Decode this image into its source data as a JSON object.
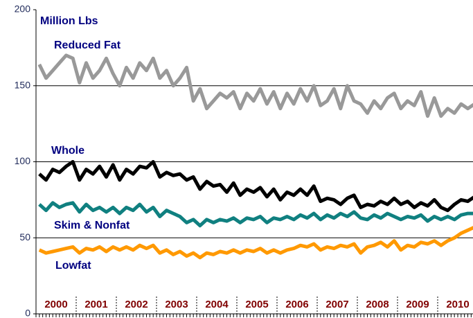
{
  "chart_data": {
    "type": "line",
    "ylabel": "Million Lbs",
    "categories": [
      null,
      null,
      null,
      "2000",
      null,
      null,
      null,
      null,
      null,
      "2001",
      null,
      null,
      null,
      null,
      null,
      "2002",
      null,
      null,
      null,
      null,
      null,
      "2003",
      null,
      null,
      null,
      null,
      null,
      "2004",
      null,
      null,
      null,
      null,
      null,
      "2005",
      null,
      null,
      null,
      null,
      null,
      "2006",
      null,
      null,
      null,
      null,
      null,
      "2007",
      null,
      null,
      null,
      null,
      null,
      "2008",
      null,
      null,
      null,
      null,
      null,
      "2009",
      null,
      null,
      null,
      null,
      null,
      "2010",
      null,
      null
    ],
    "series": [
      {
        "name": "Reduced Fat",
        "color": "#999999",
        "values": [
          164,
          155,
          160,
          165,
          170,
          168,
          152,
          165,
          155,
          160,
          168,
          158,
          150,
          162,
          155,
          165,
          160,
          168,
          155,
          160,
          150,
          155,
          162,
          140,
          148,
          135,
          140,
          145,
          142,
          146,
          135,
          145,
          140,
          148,
          138,
          146,
          135,
          145,
          138,
          148,
          140,
          150,
          137,
          140,
          148,
          135,
          150,
          140,
          138,
          132,
          140,
          135,
          142,
          145,
          135,
          140,
          137,
          146,
          130,
          142,
          130,
          135,
          132,
          138,
          135,
          138
        ]
      },
      {
        "name": "Whole",
        "color": "#000000",
        "values": [
          92,
          88,
          95,
          93,
          97,
          100,
          88,
          95,
          92,
          97,
          90,
          98,
          88,
          95,
          92,
          97,
          96,
          100,
          90,
          93,
          91,
          92,
          88,
          90,
          82,
          87,
          84,
          85,
          80,
          86,
          78,
          82,
          80,
          83,
          77,
          82,
          75,
          80,
          78,
          82,
          78,
          84,
          74,
          76,
          75,
          72,
          76,
          78,
          70,
          72,
          71,
          74,
          72,
          76,
          72,
          74,
          70,
          73,
          71,
          75,
          70,
          68,
          72,
          75,
          74,
          77
        ]
      },
      {
        "name": "Skim & Nonfat",
        "color": "#108080",
        "values": [
          72,
          68,
          73,
          70,
          72,
          73,
          67,
          72,
          68,
          70,
          67,
          70,
          66,
          70,
          68,
          72,
          67,
          70,
          64,
          68,
          66,
          64,
          60,
          62,
          58,
          62,
          60,
          62,
          61,
          63,
          60,
          63,
          62,
          64,
          60,
          63,
          62,
          64,
          62,
          65,
          63,
          66,
          62,
          65,
          63,
          66,
          64,
          67,
          63,
          62,
          65,
          63,
          66,
          64,
          62,
          64,
          63,
          65,
          61,
          64,
          62,
          64,
          62,
          65,
          66,
          66
        ]
      },
      {
        "name": "Lowfat",
        "color": "#ff9900",
        "values": [
          42,
          40,
          41,
          42,
          43,
          44,
          40,
          43,
          42,
          44,
          41,
          44,
          42,
          44,
          42,
          45,
          43,
          45,
          40,
          42,
          39,
          41,
          38,
          40,
          37,
          40,
          39,
          41,
          40,
          42,
          40,
          42,
          41,
          43,
          40,
          42,
          40,
          42,
          43,
          45,
          44,
          46,
          42,
          44,
          43,
          45,
          44,
          46,
          40,
          44,
          45,
          47,
          44,
          48,
          42,
          45,
          44,
          47,
          46,
          48,
          45,
          48,
          50,
          53,
          55,
          57
        ]
      }
    ],
    "ylim": [
      0,
      200
    ],
    "yticks": [
      0,
      50,
      100,
      150,
      200
    ],
    "grid": true
  }
}
